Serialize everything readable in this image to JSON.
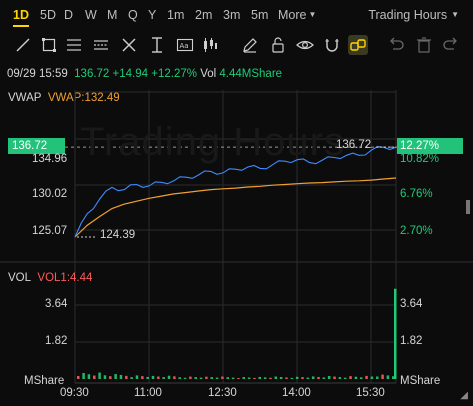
{
  "timeframes": [
    {
      "label": "1D",
      "active": true
    },
    {
      "label": "5D",
      "active": false
    },
    {
      "label": "D",
      "active": false
    },
    {
      "label": "W",
      "active": false
    },
    {
      "label": "M",
      "active": false
    },
    {
      "label": "Q",
      "active": false
    },
    {
      "label": "Y",
      "active": false
    },
    {
      "label": "1m",
      "active": false
    },
    {
      "label": "2m",
      "active": false
    },
    {
      "label": "3m",
      "active": false
    },
    {
      "label": "5m",
      "active": false
    }
  ],
  "more_label": "More",
  "session_label": "Trading Hours",
  "tools": [
    "line-tool-icon",
    "rectangle-tool-icon",
    "horizontal-line-tool-icon",
    "parallel-channel-icon",
    "ray-tool-icon",
    "vertical-line-tool-icon",
    "text-tool-icon",
    "candles-tool-icon",
    "pencil-icon",
    "unlock-icon",
    "eye-icon",
    "magnet-icon",
    "undo-icon",
    "delete-icon",
    "redo-icon"
  ],
  "quote": {
    "datetime": "09/29 15:59",
    "price": "136.72",
    "change": "+14.94",
    "change_pct": "+12.27%",
    "vol_label": "Vol",
    "volume": "4.44MShare"
  },
  "vwap": {
    "name": "VWAP",
    "value_label": "VWAP:132.49"
  },
  "price_axis": {
    "current": "136.72",
    "left_labels": [
      "134.96",
      "130.02",
      "125.07"
    ],
    "right_labels": [
      "10.82%",
      "6.76%",
      "2.70%"
    ],
    "current_pct": "12.27%",
    "high_label": "136.72",
    "low_label": "124.39"
  },
  "vol_panel": {
    "name": "VOL",
    "value_label": "VOL1:4.44",
    "left_labels": [
      "3.64",
      "1.82"
    ],
    "right_labels": [
      "3.64",
      "1.82"
    ],
    "unit": "MShare"
  },
  "time_labels": [
    "09:30",
    "11:00",
    "12:30",
    "14:00",
    "15:30"
  ],
  "watermark": "Trading Hours",
  "colors": {
    "accent": "#ffd400",
    "up": "#1fcb77",
    "down": "#ff5a5a",
    "price_line": "#3d8cff",
    "vwap_line": "#f0a030"
  },
  "chart_data": [
    {
      "type": "line",
      "x": [
        "09:30",
        "09:45",
        "10:00",
        "10:15",
        "10:30",
        "10:45",
        "11:00",
        "11:15",
        "11:30",
        "11:45",
        "12:00",
        "12:15",
        "12:30",
        "12:45",
        "13:00",
        "13:15",
        "13:30",
        "13:45",
        "14:00",
        "14:15",
        "14:30",
        "14:45",
        "15:00",
        "15:15",
        "15:30",
        "15:45",
        "15:59"
      ],
      "series": [
        {
          "values": [
            124.39,
            127.6,
            129.6,
            131.2,
            130.9,
            131.6,
            131.4,
            131.9,
            132.1,
            132.6,
            132.9,
            133.4,
            133.2,
            133.7,
            134.0,
            133.8,
            134.3,
            134.8,
            135.0,
            134.6,
            134.9,
            135.3,
            135.6,
            135.6,
            136.3,
            136.7,
            136.72
          ]
        },
        {
          "name": "VWAP",
          "values": [
            124.39,
            126.0,
            127.2,
            128.3,
            128.9,
            129.3,
            129.7,
            130.0,
            130.3,
            130.5,
            130.7,
            130.9,
            131.0,
            131.1,
            131.25,
            131.35,
            131.5,
            131.6,
            131.7,
            131.8,
            131.85,
            131.95,
            132.05,
            132.1,
            132.2,
            132.35,
            132.49
          ]
        }
      ],
      "y_ticks": [
        125.07,
        130.02,
        134.96
      ],
      "ylim": [
        124.0,
        137.5
      ]
    },
    {
      "type": "bar",
      "name": "VOL",
      "categories": [
        "09:30",
        "10:00",
        "10:30",
        "11:00",
        "11:30",
        "12:00",
        "12:30",
        "13:00",
        "13:30",
        "14:00",
        "14:30",
        "15:00",
        "15:30",
        "15:59"
      ],
      "values": [
        0.25,
        0.18,
        0.15,
        0.12,
        0.1,
        0.09,
        0.08,
        0.08,
        0.09,
        0.1,
        0.11,
        0.12,
        0.16,
        4.44
      ],
      "y_ticks": [
        1.82,
        3.64
      ],
      "ylim": [
        0,
        4.6
      ]
    }
  ]
}
